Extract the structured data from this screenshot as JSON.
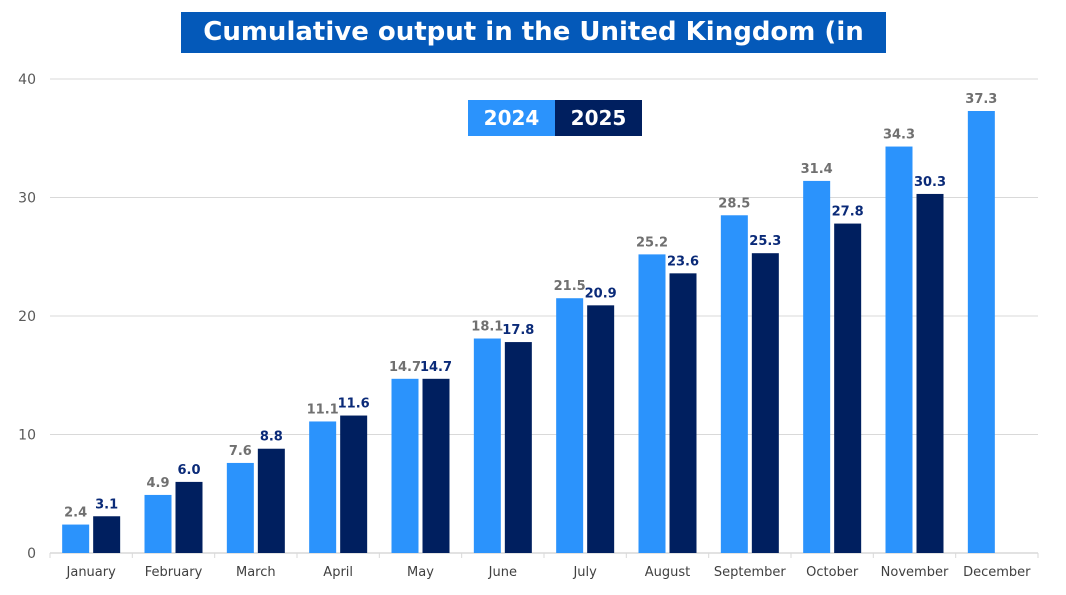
{
  "chart_data": {
    "type": "bar",
    "title": "Cumulative output in the United Kingdom (in TWh)",
    "categories": [
      "January",
      "February",
      "March",
      "April",
      "May",
      "June",
      "July",
      "August",
      "September",
      "October",
      "November",
      "December"
    ],
    "series": [
      {
        "name": "2024",
        "color": "#2b93fc",
        "label_color": "#707070",
        "values": [
          2.4,
          4.9,
          7.6,
          11.1,
          14.7,
          18.1,
          21.5,
          25.2,
          28.5,
          31.4,
          34.3,
          37.3
        ]
      },
      {
        "name": "2025",
        "color": "#001f5f",
        "label_color": "#0a2a78",
        "values": [
          3.1,
          6.0,
          8.8,
          11.6,
          14.7,
          17.8,
          20.9,
          23.6,
          25.3,
          27.8,
          30.3,
          null
        ]
      }
    ],
    "ylim": [
      0,
      40
    ],
    "yticks": [
      0,
      10,
      20,
      30,
      40
    ],
    "grid": true,
    "legend_position": "top-center"
  }
}
